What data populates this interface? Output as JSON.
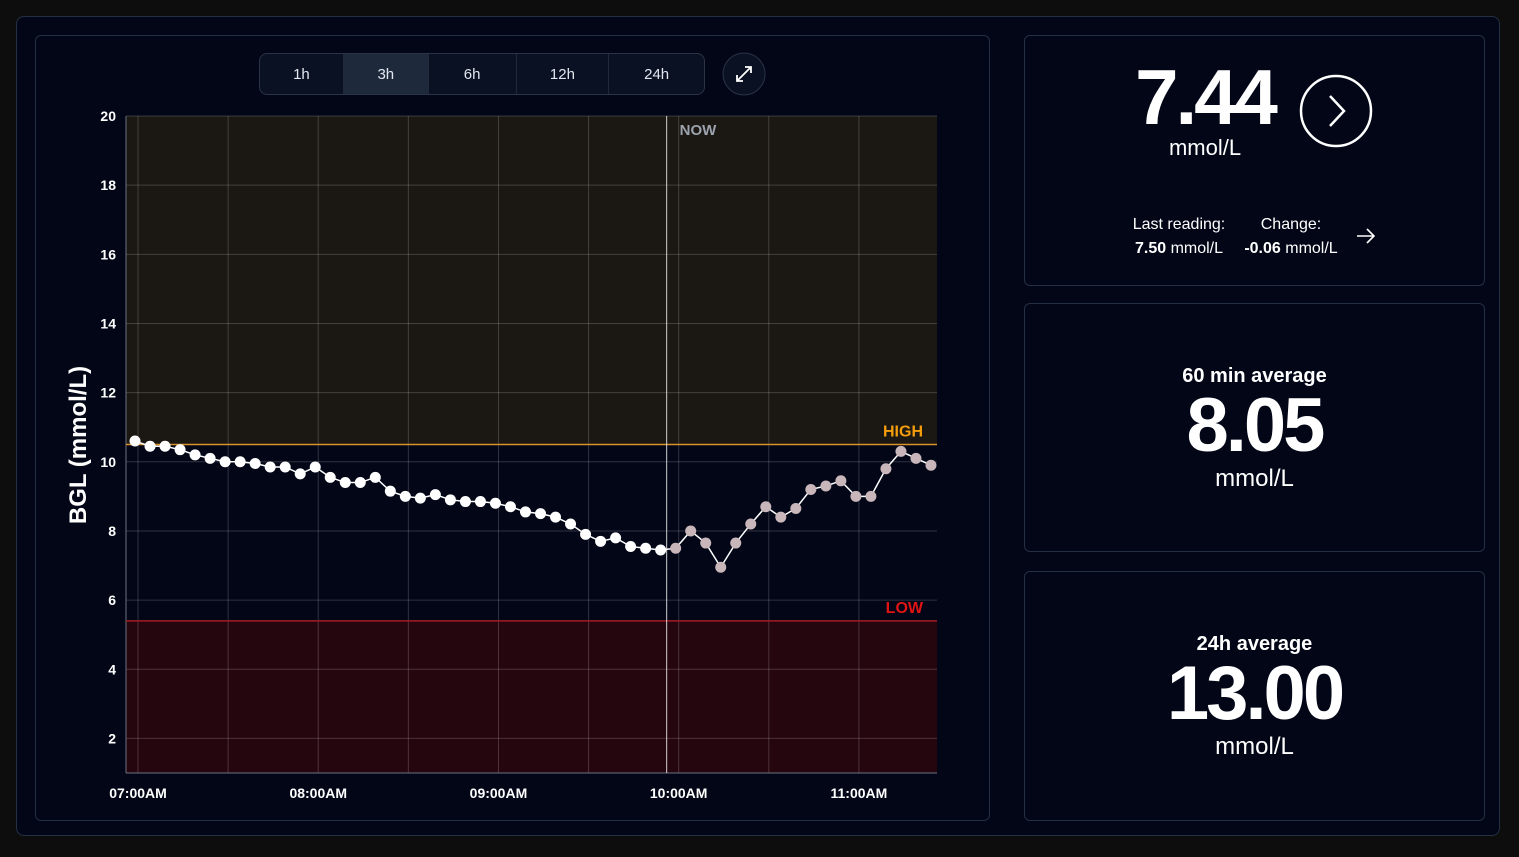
{
  "controls": {
    "ranges": [
      "1h",
      "3h",
      "6h",
      "12h",
      "24h"
    ],
    "active": 1
  },
  "chart_data": {
    "type": "line",
    "y_label": "BGL (mmol/L)",
    "x": [
      "06:59",
      "07:04",
      "07:09",
      "07:14",
      "07:19",
      "07:24",
      "07:29",
      "07:34",
      "07:39",
      "07:44",
      "07:49",
      "07:54",
      "07:59",
      "08:04",
      "08:09",
      "08:14",
      "08:19",
      "08:24",
      "08:29",
      "08:34",
      "08:39",
      "08:44",
      "08:49",
      "08:54",
      "08:59",
      "09:04",
      "09:09",
      "09:14",
      "09:19",
      "09:24",
      "09:29",
      "09:34",
      "09:39",
      "09:44",
      "09:49",
      "09:54",
      "09:59",
      "10:04",
      "10:09",
      "10:14",
      "10:19",
      "10:24",
      "10:29",
      "10:34",
      "10:39",
      "10:44",
      "10:49",
      "10:54",
      "10:59",
      "11:04",
      "11:09",
      "11:14",
      "11:19",
      "11:24"
    ],
    "series": [
      {
        "color": "#ffffff",
        "after_now_color": "#c9b6ba",
        "values": [
          10.6,
          10.45,
          10.45,
          10.35,
          10.2,
          10.1,
          10.0,
          10.0,
          9.95,
          9.85,
          9.85,
          9.65,
          9.85,
          9.55,
          9.4,
          9.4,
          9.55,
          9.15,
          9.0,
          8.95,
          9.05,
          8.9,
          8.85,
          8.85,
          8.8,
          8.7,
          8.55,
          8.5,
          8.4,
          8.2,
          7.9,
          7.7,
          7.8,
          7.55,
          7.5,
          7.45,
          7.5,
          8.0,
          7.65,
          6.95,
          7.65,
          8.2,
          8.7,
          8.4,
          8.65,
          9.2,
          9.3,
          9.45,
          9.0,
          9.0,
          9.8,
          10.3,
          10.1,
          9.9
        ]
      }
    ],
    "ylim": [
      1,
      20
    ],
    "yticks": [
      2,
      4,
      6,
      8,
      10,
      12,
      14,
      16,
      18,
      20
    ],
    "xlim": [
      "06:56",
      "11:26"
    ],
    "xticks": [
      {
        "value": "07:00",
        "label": "07:00AM"
      },
      {
        "value": "08:00",
        "label": "08:00AM"
      },
      {
        "value": "09:00",
        "label": "09:00AM"
      },
      {
        "value": "10:00",
        "label": "10:00AM"
      },
      {
        "value": "11:00",
        "label": "11:00AM"
      }
    ],
    "xgrid": [
      "07:30",
      "08:30",
      "09:30",
      "10:30"
    ],
    "grid": true,
    "thresholds": [
      {
        "label": "HIGH",
        "value": 10.5,
        "color": "#d8922c",
        "label_color": "#f59e0b",
        "zone": "#1b1712",
        "side": "above"
      },
      {
        "label": "LOW",
        "value": 5.4,
        "color": "#a51c22",
        "label_color": "#e11414",
        "zone": "#25060f",
        "side": "below"
      }
    ],
    "now": {
      "label": "NOW",
      "x": "09:56"
    }
  },
  "current": {
    "value": "7.44",
    "unit": "mmol/L",
    "last_reading": {
      "label": "Last reading:",
      "value": "7.50",
      "unit": "mmol/L"
    },
    "change": {
      "label": "Change:",
      "value": "-0.06",
      "unit": "mmol/L"
    }
  },
  "averages": [
    {
      "label": "60 min average",
      "value": "8.05",
      "unit": "mmol/L"
    },
    {
      "label": "24h average",
      "value": "13.00",
      "unit": "mmol/L"
    }
  ]
}
